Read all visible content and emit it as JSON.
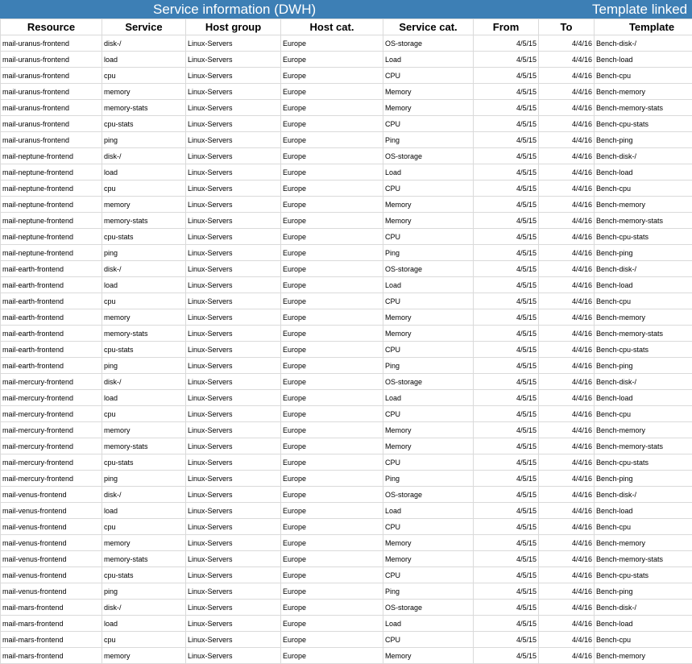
{
  "banner": {
    "left": "Service information (DWH)",
    "right": "Template linked"
  },
  "colors": {
    "banner": "#3d7fb5",
    "grid": "#dadada"
  },
  "columns": [
    "Resource",
    "Service",
    "Host group",
    "Host cat.",
    "Service cat.",
    "From",
    "To",
    "Template"
  ],
  "rows": [
    [
      "mail-uranus-frontend",
      "disk-/",
      "Linux-Servers",
      "Europe",
      "OS-storage",
      "4/5/15",
      "4/4/16",
      "Bench-disk-/"
    ],
    [
      "mail-uranus-frontend",
      "load",
      "Linux-Servers",
      "Europe",
      "Load",
      "4/5/15",
      "4/4/16",
      "Bench-load"
    ],
    [
      "mail-uranus-frontend",
      "cpu",
      "Linux-Servers",
      "Europe",
      "CPU",
      "4/5/15",
      "4/4/16",
      "Bench-cpu"
    ],
    [
      "mail-uranus-frontend",
      "memory",
      "Linux-Servers",
      "Europe",
      "Memory",
      "4/5/15",
      "4/4/16",
      "Bench-memory"
    ],
    [
      "mail-uranus-frontend",
      "memory-stats",
      "Linux-Servers",
      "Europe",
      "Memory",
      "4/5/15",
      "4/4/16",
      "Bench-memory-stats"
    ],
    [
      "mail-uranus-frontend",
      "cpu-stats",
      "Linux-Servers",
      "Europe",
      "CPU",
      "4/5/15",
      "4/4/16",
      "Bench-cpu-stats"
    ],
    [
      "mail-uranus-frontend",
      "ping",
      "Linux-Servers",
      "Europe",
      "Ping",
      "4/5/15",
      "4/4/16",
      "Bench-ping"
    ],
    [
      "mail-neptune-frontend",
      "disk-/",
      "Linux-Servers",
      "Europe",
      "OS-storage",
      "4/5/15",
      "4/4/16",
      "Bench-disk-/"
    ],
    [
      "mail-neptune-frontend",
      "load",
      "Linux-Servers",
      "Europe",
      "Load",
      "4/5/15",
      "4/4/16",
      "Bench-load"
    ],
    [
      "mail-neptune-frontend",
      "cpu",
      "Linux-Servers",
      "Europe",
      "CPU",
      "4/5/15",
      "4/4/16",
      "Bench-cpu"
    ],
    [
      "mail-neptune-frontend",
      "memory",
      "Linux-Servers",
      "Europe",
      "Memory",
      "4/5/15",
      "4/4/16",
      "Bench-memory"
    ],
    [
      "mail-neptune-frontend",
      "memory-stats",
      "Linux-Servers",
      "Europe",
      "Memory",
      "4/5/15",
      "4/4/16",
      "Bench-memory-stats"
    ],
    [
      "mail-neptune-frontend",
      "cpu-stats",
      "Linux-Servers",
      "Europe",
      "CPU",
      "4/5/15",
      "4/4/16",
      "Bench-cpu-stats"
    ],
    [
      "mail-neptune-frontend",
      "ping",
      "Linux-Servers",
      "Europe",
      "Ping",
      "4/5/15",
      "4/4/16",
      "Bench-ping"
    ],
    [
      "mail-earth-frontend",
      "disk-/",
      "Linux-Servers",
      "Europe",
      "OS-storage",
      "4/5/15",
      "4/4/16",
      "Bench-disk-/"
    ],
    [
      "mail-earth-frontend",
      "load",
      "Linux-Servers",
      "Europe",
      "Load",
      "4/5/15",
      "4/4/16",
      "Bench-load"
    ],
    [
      "mail-earth-frontend",
      "cpu",
      "Linux-Servers",
      "Europe",
      "CPU",
      "4/5/15",
      "4/4/16",
      "Bench-cpu"
    ],
    [
      "mail-earth-frontend",
      "memory",
      "Linux-Servers",
      "Europe",
      "Memory",
      "4/5/15",
      "4/4/16",
      "Bench-memory"
    ],
    [
      "mail-earth-frontend",
      "memory-stats",
      "Linux-Servers",
      "Europe",
      "Memory",
      "4/5/15",
      "4/4/16",
      "Bench-memory-stats"
    ],
    [
      "mail-earth-frontend",
      "cpu-stats",
      "Linux-Servers",
      "Europe",
      "CPU",
      "4/5/15",
      "4/4/16",
      "Bench-cpu-stats"
    ],
    [
      "mail-earth-frontend",
      "ping",
      "Linux-Servers",
      "Europe",
      "Ping",
      "4/5/15",
      "4/4/16",
      "Bench-ping"
    ],
    [
      "mail-mercury-frontend",
      "disk-/",
      "Linux-Servers",
      "Europe",
      "OS-storage",
      "4/5/15",
      "4/4/16",
      "Bench-disk-/"
    ],
    [
      "mail-mercury-frontend",
      "load",
      "Linux-Servers",
      "Europe",
      "Load",
      "4/5/15",
      "4/4/16",
      "Bench-load"
    ],
    [
      "mail-mercury-frontend",
      "cpu",
      "Linux-Servers",
      "Europe",
      "CPU",
      "4/5/15",
      "4/4/16",
      "Bench-cpu"
    ],
    [
      "mail-mercury-frontend",
      "memory",
      "Linux-Servers",
      "Europe",
      "Memory",
      "4/5/15",
      "4/4/16",
      "Bench-memory"
    ],
    [
      "mail-mercury-frontend",
      "memory-stats",
      "Linux-Servers",
      "Europe",
      "Memory",
      "4/5/15",
      "4/4/16",
      "Bench-memory-stats"
    ],
    [
      "mail-mercury-frontend",
      "cpu-stats",
      "Linux-Servers",
      "Europe",
      "CPU",
      "4/5/15",
      "4/4/16",
      "Bench-cpu-stats"
    ],
    [
      "mail-mercury-frontend",
      "ping",
      "Linux-Servers",
      "Europe",
      "Ping",
      "4/5/15",
      "4/4/16",
      "Bench-ping"
    ],
    [
      "mail-venus-frontend",
      "disk-/",
      "Linux-Servers",
      "Europe",
      "OS-storage",
      "4/5/15",
      "4/4/16",
      "Bench-disk-/"
    ],
    [
      "mail-venus-frontend",
      "load",
      "Linux-Servers",
      "Europe",
      "Load",
      "4/5/15",
      "4/4/16",
      "Bench-load"
    ],
    [
      "mail-venus-frontend",
      "cpu",
      "Linux-Servers",
      "Europe",
      "CPU",
      "4/5/15",
      "4/4/16",
      "Bench-cpu"
    ],
    [
      "mail-venus-frontend",
      "memory",
      "Linux-Servers",
      "Europe",
      "Memory",
      "4/5/15",
      "4/4/16",
      "Bench-memory"
    ],
    [
      "mail-venus-frontend",
      "memory-stats",
      "Linux-Servers",
      "Europe",
      "Memory",
      "4/5/15",
      "4/4/16",
      "Bench-memory-stats"
    ],
    [
      "mail-venus-frontend",
      "cpu-stats",
      "Linux-Servers",
      "Europe",
      "CPU",
      "4/5/15",
      "4/4/16",
      "Bench-cpu-stats"
    ],
    [
      "mail-venus-frontend",
      "ping",
      "Linux-Servers",
      "Europe",
      "Ping",
      "4/5/15",
      "4/4/16",
      "Bench-ping"
    ],
    [
      "mail-mars-frontend",
      "disk-/",
      "Linux-Servers",
      "Europe",
      "OS-storage",
      "4/5/15",
      "4/4/16",
      "Bench-disk-/"
    ],
    [
      "mail-mars-frontend",
      "load",
      "Linux-Servers",
      "Europe",
      "Load",
      "4/5/15",
      "4/4/16",
      "Bench-load"
    ],
    [
      "mail-mars-frontend",
      "cpu",
      "Linux-Servers",
      "Europe",
      "CPU",
      "4/5/15",
      "4/4/16",
      "Bench-cpu"
    ],
    [
      "mail-mars-frontend",
      "memory",
      "Linux-Servers",
      "Europe",
      "Memory",
      "4/5/15",
      "4/4/16",
      "Bench-memory"
    ]
  ]
}
